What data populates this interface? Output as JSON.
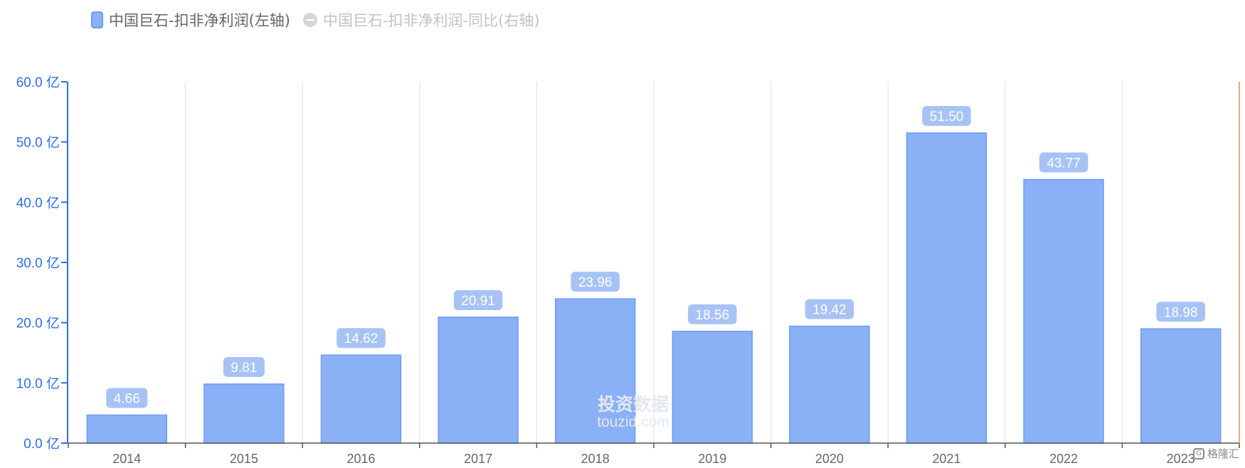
{
  "legend": {
    "items": [
      {
        "label": "中国巨石-扣非净利润(左轴)",
        "icon": "bar-swatch-icon",
        "active": true
      },
      {
        "label": "中国巨石-扣非净利润-同比(右轴)",
        "icon": "line-swatch-icon",
        "active": false
      }
    ]
  },
  "chart_data": {
    "type": "bar",
    "categories": [
      "2014",
      "2015",
      "2016",
      "2017",
      "2018",
      "2019",
      "2020",
      "2021",
      "2022",
      "2023"
    ],
    "series": [
      {
        "name": "中国巨石-扣非净利润(左轴)",
        "values": [
          4.66,
          9.81,
          14.62,
          20.91,
          23.96,
          18.56,
          19.42,
          51.5,
          43.77,
          18.98
        ],
        "value_labels": [
          "4.66",
          "9.81",
          "14.62",
          "20.91",
          "23.96",
          "18.56",
          "19.42",
          "51.50",
          "43.77",
          "18.98"
        ]
      }
    ],
    "y_ticks": [
      "0.0 亿",
      "10.0 亿",
      "20.0 亿",
      "30.0 亿",
      "40.0 亿",
      "50.0 亿",
      "60.0 亿"
    ],
    "ylim": [
      0,
      60
    ],
    "grid": "vertical",
    "legend_position": "top-left",
    "colors": {
      "bar_fill": "#8ab0f6",
      "bar_stroke": "#6f9cf1",
      "label_bg": "#a7c3f6",
      "axis_left": "#2f6fe3",
      "axis_right": "#f08a4b",
      "grid": "#e0e0e0"
    }
  },
  "watermark": {
    "line1": "投资数据",
    "line2": "touzid.com"
  },
  "brand": {
    "icon": "brand-icon",
    "text": "格隆汇"
  }
}
